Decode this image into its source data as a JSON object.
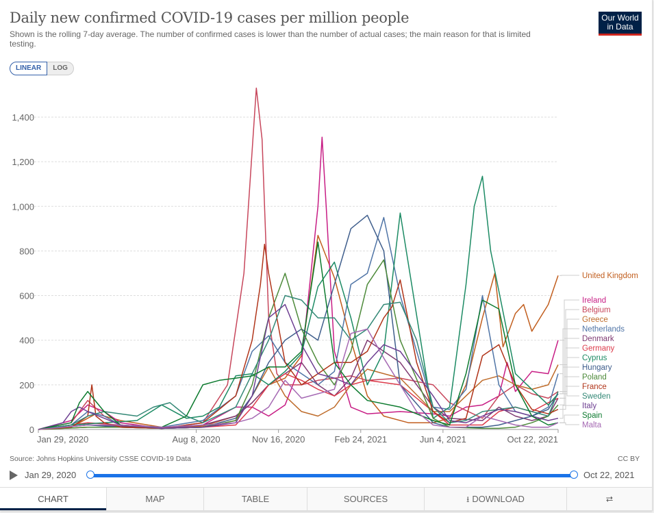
{
  "header": {
    "title": "Daily new confirmed COVID-19 cases per million people",
    "subtitle": "Shown is the rolling 7-day average. The number of confirmed cases is lower than the number of actual cases; the main reason for that is limited testing.",
    "logo_line1": "Our World",
    "logo_line2": "in Data"
  },
  "scale_toggle": {
    "linear": "LINEAR",
    "log": "LOG",
    "selected": "LINEAR"
  },
  "footer": {
    "source": "Source: Johns Hopkins University CSSE COVID-19 Data",
    "license": "CC BY"
  },
  "timeline": {
    "start": "Jan 29, 2020",
    "end": "Oct 22, 2021",
    "start_fraction": 0,
    "end_fraction": 1
  },
  "tabs": [
    {
      "label": "CHART",
      "icon": ""
    },
    {
      "label": "MAP",
      "icon": ""
    },
    {
      "label": "TABLE",
      "icon": ""
    },
    {
      "label": "SOURCES",
      "icon": ""
    },
    {
      "label": "DOWNLOAD",
      "icon": "download-icon"
    },
    {
      "label": "",
      "icon": "share-icon"
    }
  ],
  "chart_data": {
    "type": "line",
    "title": "Daily new confirmed COVID-19 cases per million people",
    "xlabel": "",
    "ylabel": "",
    "x_unit": "days since Jan 29, 2020",
    "xlim": [
      0,
      632
    ],
    "ylim": [
      0,
      1500
    ],
    "yticks": [
      0,
      200,
      400,
      600,
      800,
      1000,
      1200,
      1400
    ],
    "ytick_labels": [
      "0",
      "200",
      "400",
      "600",
      "800",
      "1,000",
      "1,200",
      "1,400"
    ],
    "xticks": [
      0,
      192,
      292,
      392,
      492,
      632
    ],
    "xtick_labels": [
      "Jan 29, 2020",
      "Aug 8, 2020",
      "Nov 16, 2020",
      "Feb 24, 2021",
      "Jun 4, 2021",
      "Oct 22, 2021"
    ],
    "grid": "horizontal-dashed",
    "legend": "right",
    "series": [
      {
        "name": "United Kingdom",
        "color": "#c15e1e",
        "x": [
          0,
          40,
          70,
          100,
          150,
          200,
          240,
          260,
          280,
          300,
          320,
          340,
          360,
          380,
          400,
          420,
          450,
          480,
          500,
          520,
          540,
          555,
          565,
          580,
          590,
          600,
          610,
          620,
          632
        ],
        "y": [
          0,
          10,
          70,
          40,
          10,
          15,
          60,
          120,
          200,
          230,
          330,
          870,
          680,
          400,
          150,
          60,
          30,
          30,
          50,
          200,
          500,
          700,
          370,
          520,
          560,
          440,
          500,
          560,
          690
        ]
      },
      {
        "name": "Ireland",
        "color": "#c71c84",
        "x": [
          0,
          40,
          60,
          80,
          100,
          150,
          200,
          240,
          260,
          280,
          300,
          320,
          340,
          345,
          350,
          360,
          380,
          400,
          440,
          480,
          500,
          520,
          540,
          560,
          570,
          580,
          600,
          620,
          632
        ],
        "y": [
          0,
          40,
          110,
          80,
          30,
          5,
          20,
          100,
          100,
          60,
          110,
          300,
          1000,
          1310,
          1000,
          350,
          100,
          70,
          80,
          70,
          60,
          100,
          110,
          150,
          300,
          170,
          260,
          250,
          400
        ]
      },
      {
        "name": "Belgium",
        "color": "#c7465b",
        "x": [
          0,
          40,
          60,
          80,
          100,
          150,
          200,
          230,
          250,
          265,
          272,
          280,
          290,
          300,
          320,
          340,
          360,
          380,
          400,
          440,
          480,
          500,
          540,
          560,
          580,
          600,
          620,
          632
        ],
        "y": [
          0,
          30,
          130,
          60,
          20,
          5,
          30,
          200,
          700,
          1530,
          1300,
          500,
          250,
          200,
          200,
          220,
          230,
          240,
          220,
          230,
          200,
          120,
          50,
          150,
          200,
          160,
          140,
          170
        ]
      },
      {
        "name": "Greece",
        "color": "#be6b2a",
        "x": [
          0,
          60,
          100,
          150,
          200,
          240,
          260,
          280,
          300,
          320,
          340,
          360,
          380,
          400,
          440,
          480,
          500,
          520,
          540,
          560,
          580,
          600,
          620,
          632
        ],
        "y": [
          0,
          10,
          10,
          5,
          10,
          40,
          150,
          280,
          150,
          80,
          60,
          100,
          200,
          270,
          230,
          80,
          80,
          150,
          220,
          240,
          200,
          180,
          200,
          290
        ]
      },
      {
        "name": "Netherlands",
        "color": "#4f74a6",
        "x": [
          0,
          40,
          60,
          80,
          100,
          150,
          200,
          240,
          260,
          280,
          300,
          320,
          340,
          360,
          380,
          400,
          420,
          440,
          480,
          500,
          520,
          540,
          560,
          580,
          600,
          620,
          632
        ],
        "y": [
          0,
          20,
          80,
          60,
          20,
          10,
          40,
          150,
          350,
          420,
          300,
          250,
          200,
          260,
          650,
          700,
          950,
          600,
          100,
          90,
          180,
          600,
          200,
          80,
          60,
          100,
          250
        ]
      },
      {
        "name": "Denmark",
        "color": "#7f3a72",
        "x": [
          0,
          60,
          100,
          150,
          200,
          240,
          260,
          280,
          300,
          320,
          340,
          360,
          380,
          400,
          440,
          480,
          500,
          540,
          560,
          580,
          600,
          620,
          632
        ],
        "y": [
          0,
          20,
          15,
          5,
          20,
          60,
          120,
          200,
          250,
          300,
          200,
          150,
          230,
          400,
          300,
          100,
          50,
          40,
          100,
          60,
          40,
          60,
          140
        ]
      },
      {
        "name": "Germany",
        "color": "#dc3a4a",
        "x": [
          0,
          60,
          100,
          150,
          200,
          240,
          260,
          280,
          300,
          320,
          340,
          360,
          380,
          400,
          440,
          480,
          500,
          540,
          560,
          580,
          600,
          620,
          632
        ],
        "y": [
          0,
          30,
          20,
          5,
          10,
          20,
          100,
          200,
          250,
          220,
          180,
          150,
          200,
          220,
          200,
          80,
          20,
          20,
          80,
          100,
          80,
          120,
          140
        ]
      },
      {
        "name": "Cyprus",
        "color": "#1b8a63",
        "x": [
          0,
          40,
          80,
          120,
          150,
          180,
          200,
          220,
          240,
          260,
          280,
          300,
          320,
          340,
          360,
          380,
          400,
          420,
          440,
          480,
          500,
          520,
          530,
          540,
          550,
          560,
          580,
          600,
          620,
          632
        ],
        "y": [
          0,
          20,
          30,
          40,
          110,
          50,
          60,
          100,
          240,
          250,
          200,
          260,
          340,
          640,
          750,
          500,
          200,
          350,
          970,
          50,
          100,
          650,
          1000,
          1135,
          800,
          620,
          250,
          180,
          110,
          160
        ]
      },
      {
        "name": "Hungary",
        "color": "#3f5e8c",
        "x": [
          0,
          60,
          100,
          150,
          200,
          240,
          260,
          280,
          300,
          320,
          340,
          360,
          380,
          400,
          420,
          440,
          480,
          500,
          540,
          560,
          580,
          600,
          620,
          632
        ],
        "y": [
          0,
          20,
          10,
          5,
          10,
          50,
          150,
          300,
          400,
          450,
          400,
          650,
          900,
          960,
          800,
          200,
          30,
          10,
          10,
          20,
          40,
          60,
          90,
          160
        ]
      },
      {
        "name": "Poland",
        "color": "#4d8a3a",
        "x": [
          0,
          60,
          100,
          150,
          200,
          240,
          260,
          280,
          300,
          320,
          340,
          360,
          380,
          400,
          420,
          440,
          480,
          500,
          540,
          560,
          580,
          600,
          620,
          632
        ],
        "y": [
          0,
          10,
          10,
          5,
          10,
          40,
          200,
          500,
          700,
          450,
          300,
          200,
          350,
          650,
          760,
          400,
          50,
          10,
          5,
          5,
          10,
          30,
          60,
          110
        ]
      },
      {
        "name": "France",
        "color": "#b03419",
        "x": [
          0,
          40,
          60,
          65,
          70,
          80,
          100,
          150,
          200,
          240,
          260,
          270,
          275,
          280,
          290,
          300,
          320,
          340,
          360,
          380,
          400,
          420,
          430,
          440,
          460,
          480,
          500,
          520,
          540,
          560,
          580,
          600,
          620,
          632
        ],
        "y": [
          0,
          10,
          60,
          200,
          60,
          30,
          10,
          5,
          30,
          150,
          400,
          650,
          830,
          700,
          500,
          300,
          200,
          250,
          300,
          300,
          350,
          500,
          550,
          670,
          300,
          80,
          30,
          50,
          330,
          380,
          200,
          90,
          70,
          90
        ]
      },
      {
        "name": "Sweden",
        "color": "#338876",
        "x": [
          0,
          40,
          60,
          80,
          100,
          120,
          140,
          160,
          180,
          200,
          240,
          260,
          280,
          300,
          320,
          340,
          360,
          380,
          400,
          420,
          440,
          460,
          480,
          500,
          520,
          540,
          560,
          580,
          600,
          620,
          632
        ],
        "y": [
          0,
          20,
          60,
          80,
          70,
          60,
          100,
          120,
          60,
          30,
          100,
          250,
          400,
          600,
          580,
          500,
          500,
          400,
          450,
          560,
          570,
          400,
          100,
          30,
          40,
          80,
          90,
          100,
          80,
          60,
          170
        ]
      },
      {
        "name": "Italy",
        "color": "#6d3e91",
        "x": [
          0,
          30,
          40,
          50,
          60,
          80,
          100,
          150,
          200,
          240,
          260,
          280,
          300,
          320,
          340,
          360,
          380,
          400,
          420,
          440,
          480,
          500,
          520,
          540,
          560,
          580,
          600,
          620,
          632
        ],
        "y": [
          0,
          30,
          80,
          100,
          80,
          50,
          20,
          5,
          10,
          30,
          150,
          500,
          560,
          380,
          250,
          230,
          200,
          300,
          380,
          350,
          150,
          40,
          30,
          60,
          90,
          80,
          60,
          40,
          50
        ]
      },
      {
        "name": "Spain",
        "color": "#0c7a2e",
        "x": [
          0,
          40,
          50,
          60,
          80,
          100,
          150,
          180,
          200,
          220,
          240,
          260,
          280,
          300,
          320,
          340,
          360,
          380,
          400,
          440,
          480,
          500,
          520,
          540,
          560,
          580,
          600,
          620,
          632
        ],
        "y": [
          0,
          30,
          120,
          170,
          80,
          20,
          10,
          60,
          200,
          220,
          230,
          240,
          280,
          280,
          350,
          840,
          300,
          200,
          130,
          100,
          40,
          20,
          250,
          580,
          540,
          200,
          60,
          20,
          30
        ]
      },
      {
        "name": "Malta",
        "color": "#a569b3",
        "x": [
          0,
          60,
          100,
          150,
          200,
          240,
          260,
          280,
          300,
          320,
          340,
          360,
          380,
          400,
          420,
          440,
          460,
          480,
          500,
          520,
          540,
          560,
          580,
          600,
          620,
          632
        ],
        "y": [
          0,
          20,
          20,
          10,
          20,
          30,
          50,
          100,
          220,
          140,
          160,
          180,
          430,
          450,
          320,
          200,
          80,
          20,
          10,
          10,
          60,
          40,
          20,
          10,
          10,
          30
        ]
      }
    ]
  }
}
